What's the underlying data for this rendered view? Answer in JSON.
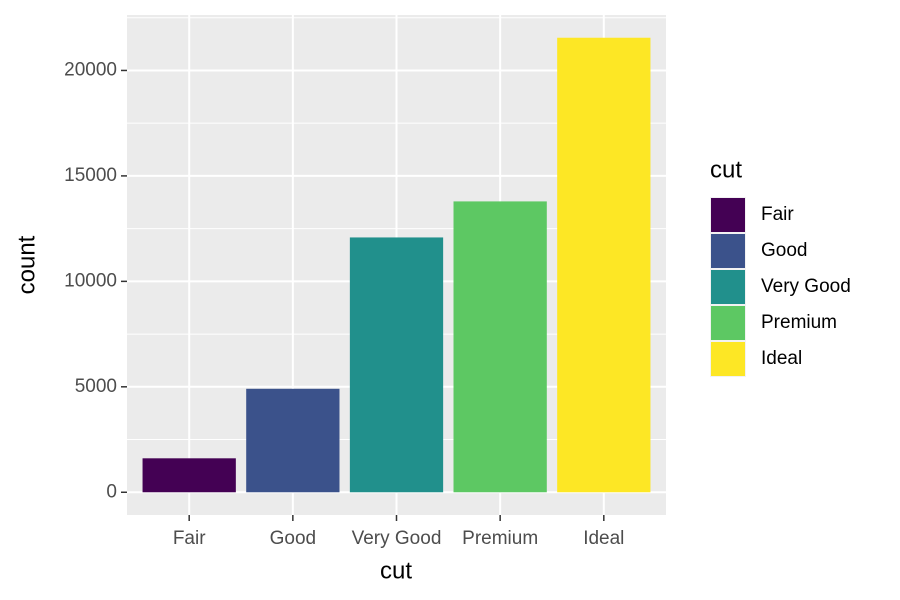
{
  "chart_data": {
    "type": "bar",
    "categories": [
      "Fair",
      "Good",
      "Very Good",
      "Premium",
      "Ideal"
    ],
    "values": [
      1610,
      4906,
      12082,
      13791,
      21551
    ],
    "colors": [
      "#440154",
      "#3B528B",
      "#21908C",
      "#5DC863",
      "#FDE725"
    ],
    "x_label": "cut",
    "y_label": "count",
    "legend_title": "cut",
    "ylim": [
      -1078,
      22629
    ],
    "yticks": [
      0,
      5000,
      10000,
      15000,
      20000
    ],
    "minor_yticks": [
      2500,
      7500,
      12500,
      17500,
      22500
    ],
    "grid": true,
    "legend": "right"
  }
}
